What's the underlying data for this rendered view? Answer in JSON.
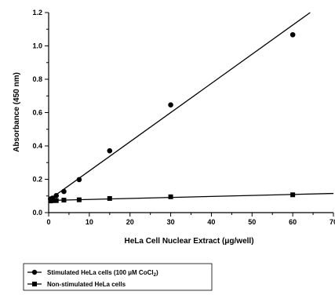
{
  "chart_data": {
    "type": "scatter",
    "xlabel": "HeLa Cell Nuclear Extract (μg/well)",
    "ylabel": "Absorbance (450 nm)",
    "xlim": [
      0,
      70
    ],
    "ylim": [
      0,
      1.2
    ],
    "xticks": [
      0,
      10,
      20,
      30,
      40,
      50,
      60,
      70
    ],
    "yticks": [
      0.0,
      0.2,
      0.4,
      0.6,
      0.8,
      1.0,
      1.2
    ],
    "xtick_labels": [
      "0",
      "10",
      "20",
      "30",
      "40",
      "50",
      "60",
      "70"
    ],
    "ytick_labels": [
      "0.0",
      "0.2",
      "0.4",
      "0.6",
      "0.8",
      "1.0",
      "1.2"
    ],
    "grid": false,
    "legend_position": "bottom-left",
    "series": [
      {
        "name": "Stimulated HeLa cells (100 μM CoCl",
        "name_subscript": "2",
        "name_suffix": ")",
        "marker": "circle",
        "color": "#000000",
        "x": [
          0.47,
          0.94,
          1.88,
          3.75,
          7.5,
          15,
          30,
          60
        ],
        "y": [
          0.082,
          0.087,
          0.102,
          0.127,
          0.198,
          0.371,
          0.646,
          1.067
        ],
        "fit": {
          "slope": 0.0175,
          "intercept": 0.075
        }
      },
      {
        "name": "Non-stimulated HeLa cells",
        "marker": "square",
        "color": "#000000",
        "x": [
          0.47,
          0.94,
          1.88,
          3.75,
          7.5,
          15,
          30,
          60
        ],
        "y": [
          0.07,
          0.072,
          0.072,
          0.075,
          0.077,
          0.085,
          0.095,
          0.107
        ],
        "fit": {
          "slope": 0.0006,
          "intercept": 0.073
        }
      }
    ]
  }
}
